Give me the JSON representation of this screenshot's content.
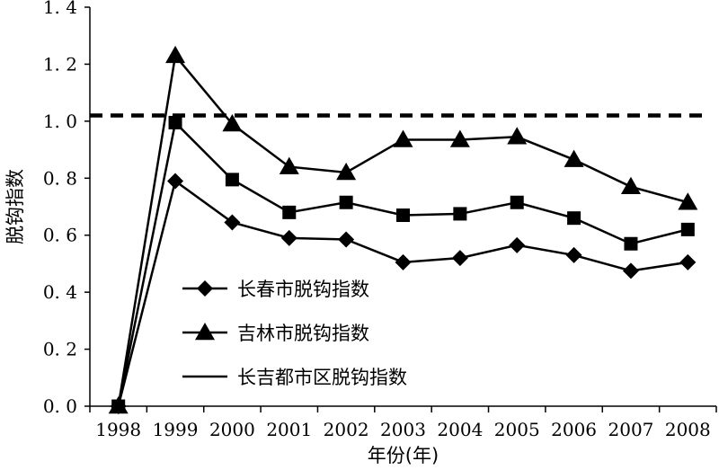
{
  "chart_data": {
    "type": "line",
    "xlabel": "年份(年)",
    "ylabel": "脱钩指数",
    "categories": [
      "1998",
      "1999",
      "2000",
      "2001",
      "2002",
      "2003",
      "2004",
      "2005",
      "2006",
      "2007",
      "2008"
    ],
    "ylim": [
      0,
      1.4
    ],
    "yticks": [
      "0. 0",
      "0. 2",
      "0. 4",
      "0. 6",
      "0. 8",
      "1. 0",
      "1. 2",
      "1. 4"
    ],
    "reference_line": {
      "value": 1.02,
      "style": "dashed"
    },
    "series": [
      {
        "name": "长春市脱钩指数",
        "marker": "diamond",
        "values": [
          0.0,
          0.79,
          0.645,
          0.59,
          0.585,
          0.505,
          0.52,
          0.565,
          0.53,
          0.475,
          0.505
        ]
      },
      {
        "name": "吉林市脱钩指数",
        "marker": "triangle",
        "values": [
          0.0,
          1.23,
          0.99,
          0.84,
          0.82,
          0.935,
          0.935,
          0.945,
          0.865,
          0.77,
          0.715
        ]
      },
      {
        "name": "长吉都市区脱钩指数",
        "marker": "square",
        "values": [
          0.0,
          0.995,
          0.795,
          0.68,
          0.715,
          0.67,
          0.675,
          0.715,
          0.66,
          0.57,
          0.62
        ]
      }
    ],
    "legend": [
      {
        "label": "长春市脱钩指数",
        "marker": "diamond"
      },
      {
        "label": "吉林市脱钩指数",
        "marker": "triangle"
      },
      {
        "label": "长吉都市区脱钩指数",
        "marker": "none"
      }
    ],
    "legend_position": "lower-middle",
    "grid": false,
    "line_color": "#000000"
  }
}
